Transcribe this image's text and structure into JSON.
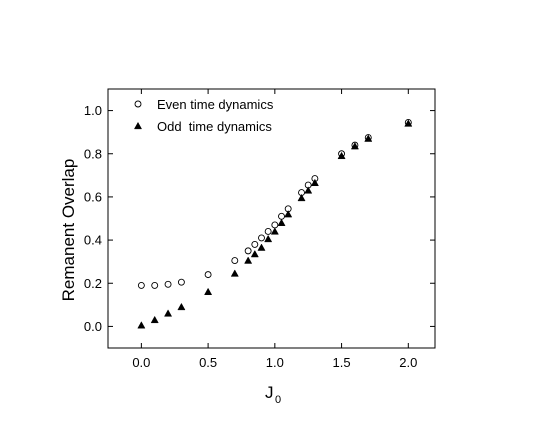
{
  "chart_data": {
    "type": "scatter",
    "xlabel": "J",
    "xlabel_sub": "0",
    "ylabel": "Remanent Overlap",
    "xlim": [
      -0.25,
      2.2
    ],
    "ylim": [
      -0.1,
      1.1
    ],
    "xticks": [
      0.0,
      0.5,
      1.0,
      1.5,
      2.0
    ],
    "xtick_labels": [
      "0.0",
      "0.5",
      "1.0",
      "1.5",
      "2.0"
    ],
    "yticks": [
      0.0,
      0.2,
      0.4,
      0.6,
      0.8,
      1.0
    ],
    "ytick_labels": [
      "0.0",
      "0.2",
      "0.4",
      "0.6",
      "0.8",
      "1.0"
    ],
    "legend_position": "top-left",
    "grid": false,
    "series": [
      {
        "name": "Even time dynamics",
        "marker": "open-circle",
        "color": "#000000",
        "x": [
          0.0,
          0.1,
          0.2,
          0.3,
          0.5,
          0.7,
          0.8,
          0.85,
          0.9,
          0.95,
          1.0,
          1.05,
          1.1,
          1.2,
          1.25,
          1.3,
          1.5,
          1.6,
          1.7,
          2.0
        ],
        "y": [
          0.19,
          0.19,
          0.195,
          0.205,
          0.24,
          0.305,
          0.35,
          0.38,
          0.41,
          0.44,
          0.47,
          0.51,
          0.545,
          0.62,
          0.655,
          0.685,
          0.8,
          0.84,
          0.875,
          0.945
        ]
      },
      {
        "name": "Odd  time dynamics",
        "marker": "filled-triangle",
        "color": "#000000",
        "x": [
          0.0,
          0.1,
          0.2,
          0.3,
          0.5,
          0.7,
          0.8,
          0.85,
          0.9,
          0.95,
          1.0,
          1.05,
          1.1,
          1.2,
          1.25,
          1.3,
          1.5,
          1.6,
          1.7,
          2.0
        ],
        "y": [
          0.005,
          0.03,
          0.06,
          0.09,
          0.16,
          0.245,
          0.305,
          0.335,
          0.365,
          0.405,
          0.44,
          0.48,
          0.52,
          0.595,
          0.63,
          0.665,
          0.79,
          0.835,
          0.87,
          0.94
        ]
      }
    ]
  }
}
